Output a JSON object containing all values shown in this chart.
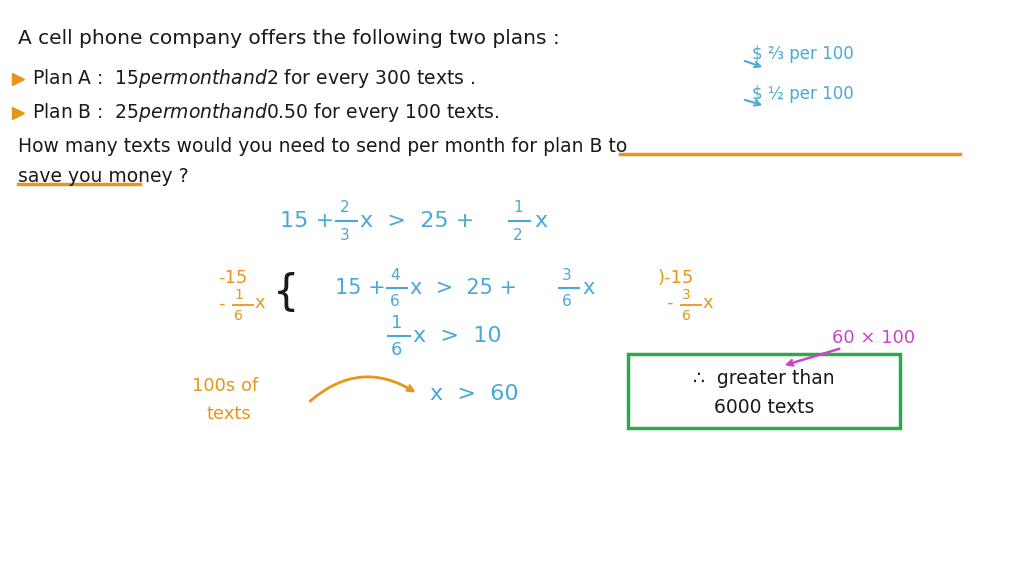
{
  "bg_color": "#ffffff",
  "figsize": [
    10.24,
    5.76
  ],
  "dpi": 100,
  "black": "#1a1a1a",
  "blue": "#4aa8d8",
  "orange": "#e8951a",
  "green": "#2ea84a",
  "magenta": "#cc44cc",
  "handwriting_font": "Comic Sans MS",
  "line1": "A cell phone company offers the following two plans :",
  "planA": "Plan A :  $15 per month and $2 for every 300 texts .",
  "planB": "Plan B :  $25 per month and $0.50 for every 100 texts.",
  "question1": "How many texts would you need to send per month for plan B to",
  "question2": "save you money ?",
  "annotation1": "$ ⅔ per 100",
  "annotation2": "$ ½ per 100",
  "box_text1": "∴  greater than",
  "box_text2": "6000 texts",
  "label_100s_1": "100s of",
  "label_100s_2": "texts",
  "label_60x100": "60 × 100"
}
